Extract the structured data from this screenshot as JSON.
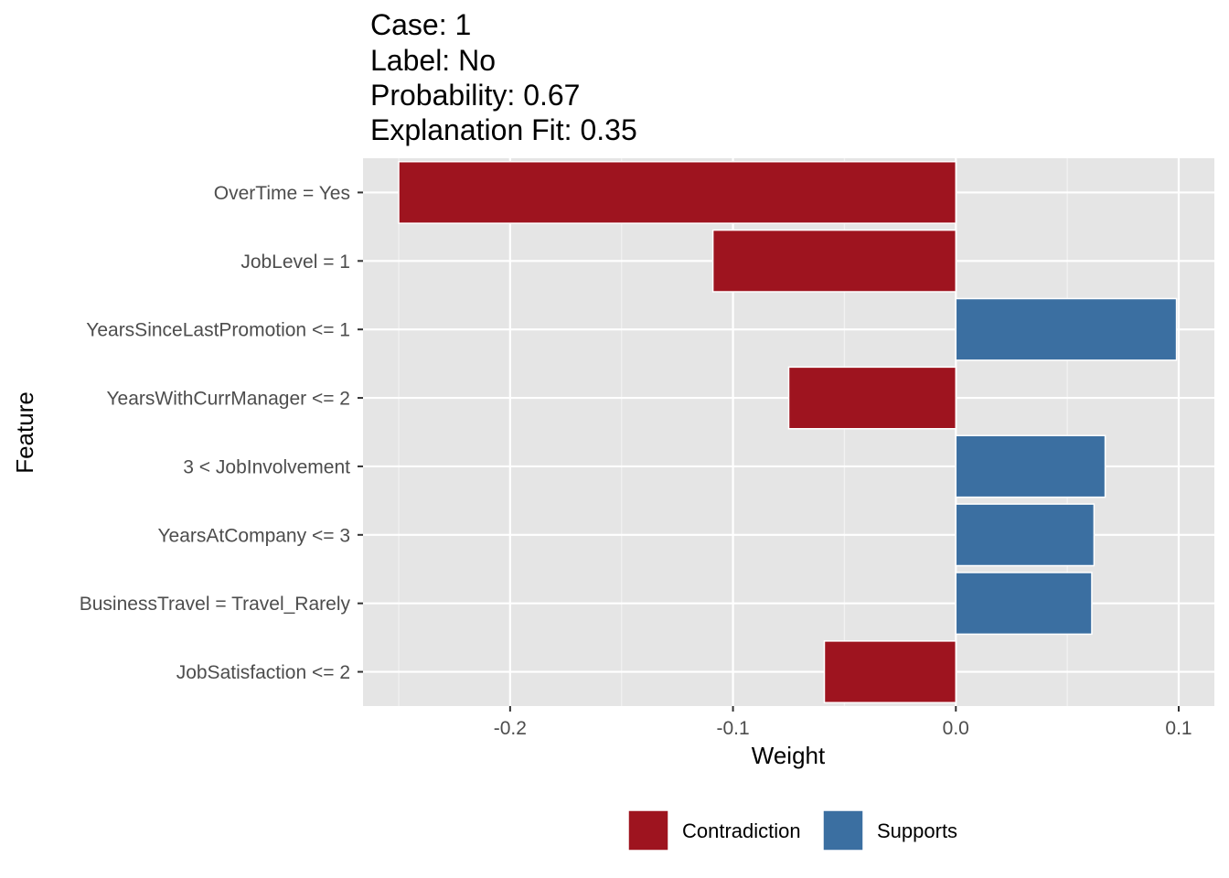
{
  "title_lines": [
    "Case: 1",
    "Label: No",
    "Probability: 0.67",
    "Explanation Fit: 0.35"
  ],
  "chart_data": {
    "type": "bar",
    "orientation": "horizontal",
    "xlabel": "Weight",
    "ylabel": "Feature",
    "xlim": [
      -0.266,
      0.116
    ],
    "x_ticks": [
      -0.2,
      -0.1,
      0.0,
      0.1
    ],
    "x_tick_labels": [
      "-0.2",
      "-0.1",
      "0.0",
      "0.1"
    ],
    "categories": [
      "OverTime = Yes",
      "JobLevel = 1",
      "YearsSinceLastPromotion <= 1",
      "YearsWithCurrManager <= 2",
      "3 < JobInvolvement",
      "YearsAtCompany <= 3",
      "BusinessTravel = Travel_Rarely",
      "JobSatisfaction <= 2"
    ],
    "values": [
      -0.25,
      -0.109,
      0.099,
      -0.075,
      0.067,
      0.062,
      0.061,
      -0.059
    ],
    "groups": [
      "Contradiction",
      "Contradiction",
      "Supports",
      "Contradiction",
      "Supports",
      "Supports",
      "Supports",
      "Contradiction"
    ],
    "grid": true,
    "legend": {
      "position": "bottom",
      "items": [
        {
          "name": "Contradiction",
          "color": "#9e141f"
        },
        {
          "name": "Supports",
          "color": "#3b6fa1"
        }
      ]
    },
    "panel_color": "#e5e5e5"
  }
}
